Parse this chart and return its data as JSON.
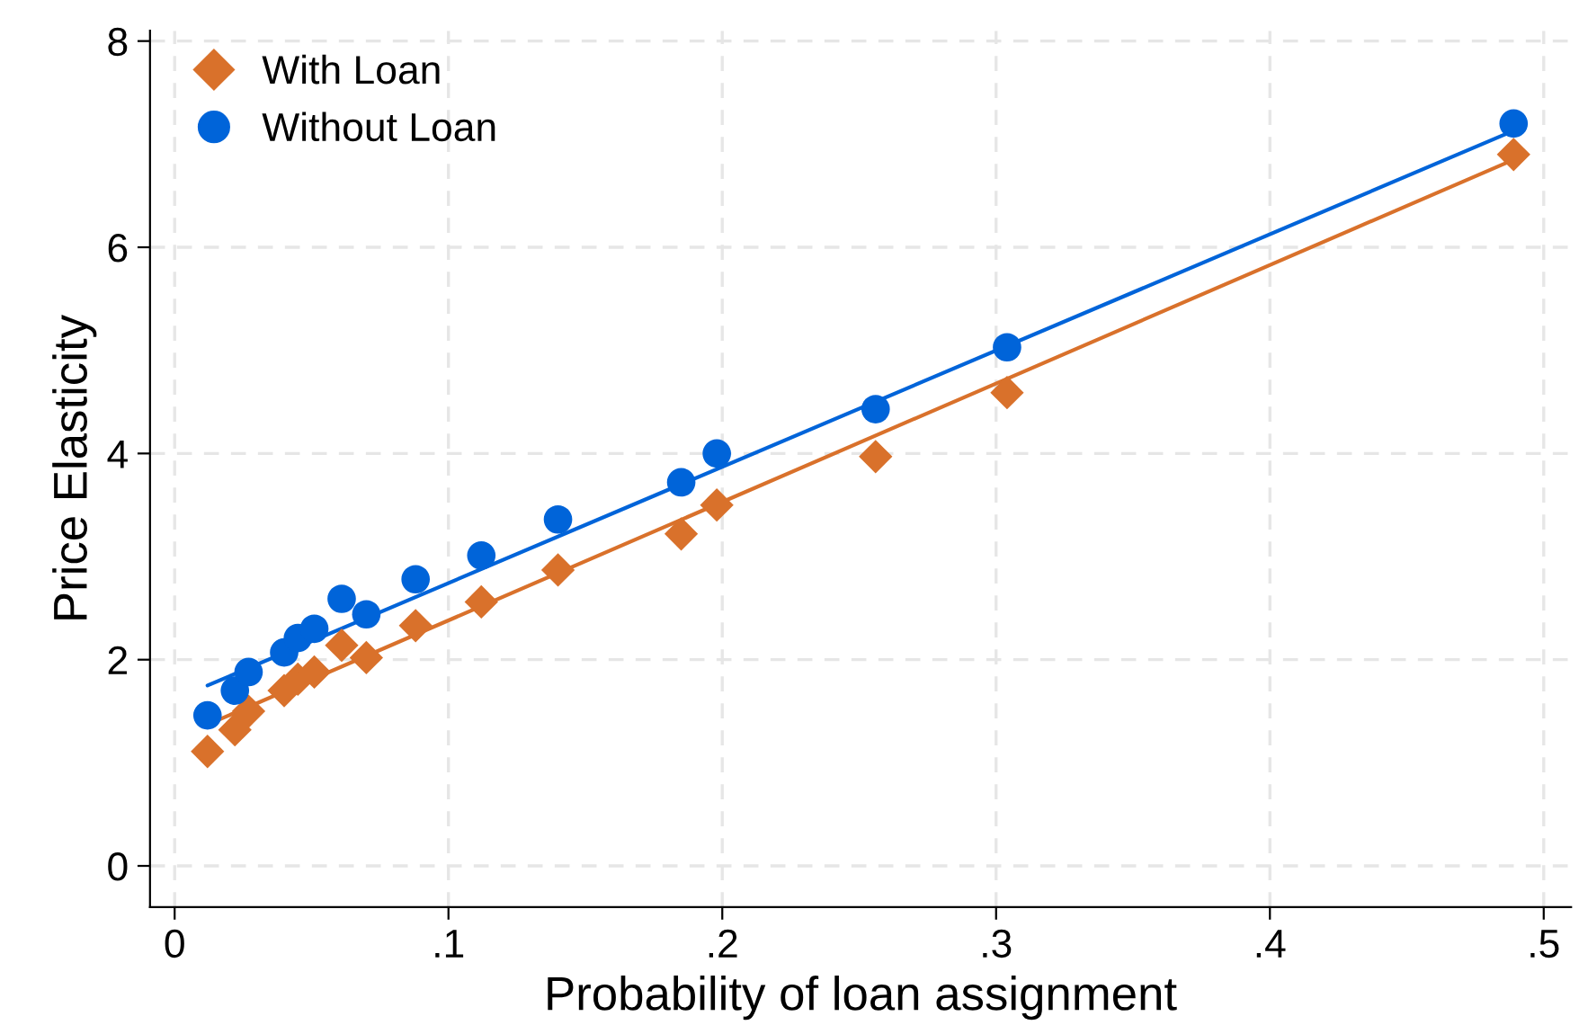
{
  "chart_data": {
    "type": "scatter",
    "xlabel": "Probability of loan assignment",
    "ylabel": "Price Elasticity",
    "xlim": [
      -0.009,
      0.51
    ],
    "ylim": [
      -0.4,
      8.1
    ],
    "xticks": [
      0,
      {
        "value": 0.1,
        "label": ".1"
      },
      {
        "value": 0.2,
        "label": ".2"
      },
      {
        "value": 0.3,
        "label": ".3"
      },
      {
        "value": 0.4,
        "label": ".4"
      },
      {
        "value": 0.5,
        "label": ".5"
      }
    ],
    "yticks": [
      0,
      2,
      4,
      6,
      8
    ],
    "grid": true,
    "legend": "top left",
    "series": [
      {
        "name": "With Loan",
        "marker": "diamond",
        "color": "#d9712b",
        "x": [
          0.012,
          0.022,
          0.027,
          0.04,
          0.045,
          0.051,
          0.061,
          0.07,
          0.088,
          0.112,
          0.14,
          0.185,
          0.198,
          0.256,
          0.304,
          0.489
        ],
        "values": [
          1.11,
          1.32,
          1.5,
          1.7,
          1.81,
          1.88,
          2.14,
          2.02,
          2.33,
          2.56,
          2.87,
          3.22,
          3.5,
          3.97,
          4.59,
          6.9
        ]
      },
      {
        "name": "Without Loan",
        "marker": "circle",
        "color": "#0064d9",
        "x": [
          0.012,
          0.022,
          0.027,
          0.04,
          0.045,
          0.051,
          0.061,
          0.07,
          0.088,
          0.112,
          0.14,
          0.185,
          0.198,
          0.256,
          0.304,
          0.489
        ],
        "values": [
          1.46,
          1.7,
          1.88,
          2.07,
          2.21,
          2.3,
          2.59,
          2.44,
          2.78,
          3.01,
          3.36,
          3.72,
          4.0,
          4.43,
          5.03,
          7.2
        ]
      },
      {
        "type": "line",
        "color": "#d9712b",
        "x": [
          0.012,
          0.489
        ],
        "values": [
          1.37,
          6.85
        ]
      },
      {
        "type": "line",
        "color": "#0064d9",
        "x": [
          0.012,
          0.489
        ],
        "values": [
          1.75,
          7.13
        ]
      }
    ]
  }
}
